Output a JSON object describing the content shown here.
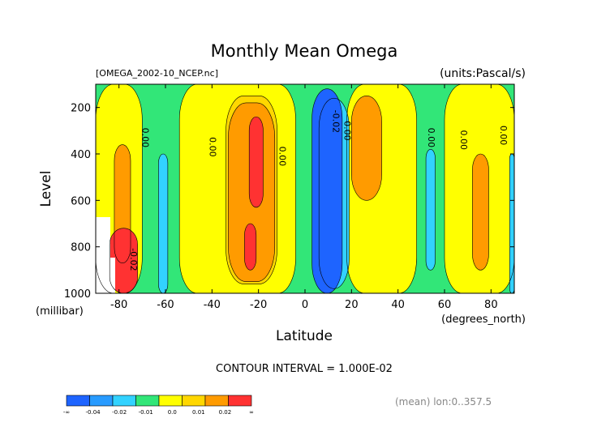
{
  "chart_data": {
    "type": "contour",
    "title": "Monthly Mean Omega",
    "source_file": "[OMEGA_2002-10_NCEP.nc]",
    "units_label": "(units:Pascal/s)",
    "xlabel": "Latitude",
    "xunit_label": "(degrees_north)",
    "ylabel": "Level",
    "yunit_label": "(millibar)",
    "xlim": [
      -90,
      90
    ],
    "ylim": [
      1000,
      100
    ],
    "x_ticks": [
      -80,
      -60,
      -40,
      -20,
      0,
      20,
      40,
      60,
      80
    ],
    "x_tick_labels": [
      "-80",
      "-60",
      "-40",
      "-20",
      "0",
      "20",
      "40",
      "60",
      "80"
    ],
    "y_ticks": [
      200,
      400,
      600,
      800,
      1000
    ],
    "y_tick_labels": [
      "200",
      "400",
      "600",
      "800",
      "1000"
    ],
    "contour_interval_text": "CONTOUR INTERVAL = 1.000E-02",
    "mean_note": "(mean) lon:0..357.5",
    "contour_labels": [
      {
        "text": "0.00",
        "lat": -70,
        "p": 330
      },
      {
        "text": "0.00",
        "lat": -41,
        "p": 370
      },
      {
        "text": "0.00",
        "lat": -11,
        "p": 410
      },
      {
        "text": "-0.02",
        "lat": 12,
        "p": 260
      },
      {
        "text": "0.00",
        "lat": 17,
        "p": 300
      },
      {
        "text": "0.00",
        "lat": 53,
        "p": 330
      },
      {
        "text": "0.00",
        "lat": 67,
        "p": 340
      },
      {
        "text": "0.00",
        "lat": 84,
        "p": 320
      },
      {
        "text": "-0.02",
        "lat": -75,
        "p": 855
      }
    ],
    "colorbar": {
      "colors": [
        "#1e64ff",
        "#289bff",
        "#32d2ff",
        "#32e678",
        "#ffff00",
        "#ffd700",
        "#ff9b00",
        "#ff3232"
      ],
      "tick_labels": [
        "-∞",
        "-0.04",
        "-0.02",
        "-0.01",
        "0.0",
        "0.01",
        "0.02",
        "∞"
      ]
    },
    "regions": [
      {
        "level": "yellow",
        "color": "#ffff00",
        "lat": [
          -90,
          -70
        ],
        "p": [
          100,
          1000
        ]
      },
      {
        "level": "yellow",
        "color": "#ffff00",
        "lat": [
          -54,
          -4
        ],
        "p": [
          100,
          1000
        ]
      },
      {
        "level": "yellow",
        "color": "#ffff00",
        "lat": [
          18,
          48
        ],
        "p": [
          100,
          1000
        ]
      },
      {
        "level": "yellow",
        "color": "#ffff00",
        "lat": [
          60,
          90
        ],
        "p": [
          100,
          1000
        ]
      },
      {
        "level": "orange",
        "color": "#ffd700",
        "lat": [
          -34,
          -12
        ],
        "p": [
          150,
          960
        ]
      },
      {
        "level": "orange-dark",
        "color": "#ff9b00",
        "lat": [
          -33,
          -13
        ],
        "p": [
          180,
          950
        ]
      },
      {
        "level": "red",
        "color": "#ff3232",
        "lat": [
          -24,
          -18
        ],
        "p": [
          240,
          630
        ]
      },
      {
        "level": "red",
        "color": "#ff3232",
        "lat": [
          -26,
          -21
        ],
        "p": [
          700,
          900
        ]
      },
      {
        "level": "orange-dark",
        "color": "#ff9b00",
        "lat": [
          20,
          33
        ],
        "p": [
          150,
          600
        ]
      },
      {
        "level": "orange-dark",
        "color": "#ff9b00",
        "lat": [
          72,
          79
        ],
        "p": [
          400,
          900
        ]
      },
      {
        "level": "orange-dark",
        "color": "#ff9b00",
        "lat": [
          -82,
          -75
        ],
        "p": [
          360,
          870
        ]
      },
      {
        "level": "red",
        "color": "#ff3232",
        "lat": [
          -84,
          -72
        ],
        "p": [
          720,
          1000
        ]
      },
      {
        "level": "cyan",
        "color": "#32d2ff",
        "lat": [
          6,
          19
        ],
        "p": [
          160,
          980
        ]
      },
      {
        "level": "blue",
        "color": "#1e64ff",
        "lat": [
          3,
          16
        ],
        "p": [
          120,
          1000
        ]
      },
      {
        "level": "cyan",
        "color": "#32d2ff",
        "lat": [
          -63,
          -59
        ],
        "p": [
          400,
          1000
        ]
      },
      {
        "level": "cyan",
        "color": "#32d2ff",
        "lat": [
          52,
          56
        ],
        "p": [
          380,
          900
        ]
      },
      {
        "level": "cyan",
        "color": "#32d2ff",
        "lat": [
          88,
          90
        ],
        "p": [
          400,
          1000
        ]
      }
    ]
  }
}
